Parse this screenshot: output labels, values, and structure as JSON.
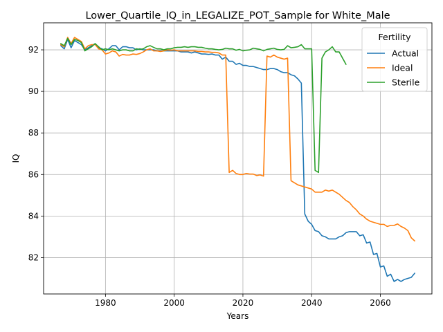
{
  "chart_data": {
    "type": "line",
    "title": "Lower_Quartile_IQ_in_LEGALIZE_POT_Sample for White_Male",
    "xlabel": "Years",
    "ylabel": "IQ",
    "xlim": [
      1962,
      2075
    ],
    "ylim": [
      80.25,
      93.3
    ],
    "xticks": [
      1980,
      2000,
      2020,
      2040,
      2060
    ],
    "yticks": [
      82,
      84,
      86,
      88,
      90,
      92
    ],
    "grid": true,
    "legend": {
      "title": "Fertility",
      "placement": "top-right"
    },
    "series": [
      {
        "name": "Actual",
        "color": "#1f77b4",
        "x": [
          1967,
          1968,
          1969,
          1970,
          1971,
          1972,
          1973,
          1974,
          1975,
          1976,
          1977,
          1978,
          1979,
          1980,
          1981,
          1982,
          1983,
          1984,
          1985,
          1986,
          1987,
          1988,
          1989,
          1990,
          1991,
          1992,
          1993,
          1994,
          1995,
          1996,
          1997,
          1998,
          1999,
          2000,
          2001,
          2002,
          2003,
          2004,
          2005,
          2006,
          2007,
          2008,
          2009,
          2010,
          2011,
          2012,
          2013,
          2014,
          2015,
          2016,
          2017,
          2018,
          2019,
          2020,
          2021,
          2022,
          2023,
          2024,
          2025,
          2026,
          2027,
          2028,
          2029,
          2030,
          2031,
          2032,
          2033,
          2034,
          2035,
          2036,
          2037,
          2038,
          2039,
          2040,
          2041,
          2042,
          2043,
          2044,
          2045,
          2046,
          2047,
          2048,
          2049,
          2050,
          2051,
          2052,
          2053,
          2054,
          2055,
          2056,
          2057,
          2058,
          2059,
          2060,
          2061,
          2062,
          2063,
          2064,
          2065,
          2066,
          2067,
          2068,
          2069,
          2070
        ],
        "values": [
          92.2,
          92.05,
          92.5,
          92.1,
          92.45,
          92.35,
          92.25,
          92.0,
          92.1,
          92.2,
          92.3,
          92.1,
          92.05,
          91.95,
          92.05,
          92.2,
          92.2,
          92.0,
          92.15,
          92.15,
          92.1,
          92.1,
          92.0,
          92.05,
          92.0,
          92.0,
          92.0,
          92.0,
          91.95,
          91.95,
          91.95,
          91.95,
          91.95,
          91.95,
          91.95,
          91.9,
          91.9,
          91.9,
          91.85,
          91.9,
          91.85,
          91.8,
          91.8,
          91.78,
          91.8,
          91.75,
          91.75,
          91.55,
          91.65,
          91.45,
          91.45,
          91.3,
          91.35,
          91.25,
          91.25,
          91.2,
          91.2,
          91.15,
          91.1,
          91.05,
          91.05,
          91.1,
          91.1,
          91.05,
          90.95,
          90.9,
          90.9,
          90.8,
          90.75,
          90.6,
          90.4,
          84.1,
          83.75,
          83.6,
          83.3,
          83.25,
          83.05,
          83.0,
          82.9,
          82.9,
          82.9,
          83.0,
          83.05,
          83.2,
          83.25,
          83.25,
          83.25,
          83.05,
          83.1,
          82.7,
          82.75,
          82.15,
          82.2,
          81.55,
          81.6,
          81.1,
          81.2,
          80.85,
          80.95,
          80.85,
          80.95,
          81.0,
          81.05,
          81.25
        ]
      },
      {
        "name": "Ideal",
        "color": "#ff7f0e",
        "x": [
          1967,
          1968,
          1969,
          1970,
          1971,
          1972,
          1973,
          1974,
          1975,
          1976,
          1977,
          1978,
          1979,
          1980,
          1981,
          1982,
          1983,
          1984,
          1985,
          1986,
          1987,
          1988,
          1989,
          1990,
          1991,
          1992,
          1993,
          1994,
          1995,
          1996,
          1997,
          1998,
          1999,
          2000,
          2001,
          2002,
          2003,
          2004,
          2005,
          2006,
          2007,
          2008,
          2009,
          2010,
          2011,
          2012,
          2013,
          2014,
          2015,
          2016,
          2017,
          2018,
          2019,
          2020,
          2021,
          2022,
          2023,
          2024,
          2025,
          2026,
          2027,
          2028,
          2029,
          2030,
          2031,
          2032,
          2033,
          2034,
          2035,
          2036,
          2037,
          2038,
          2039,
          2040,
          2041,
          2042,
          2043,
          2044,
          2045,
          2046,
          2047,
          2048,
          2049,
          2050,
          2051,
          2052,
          2053,
          2054,
          2055,
          2056,
          2057,
          2058,
          2059,
          2060,
          2061,
          2062,
          2063,
          2064,
          2065,
          2066,
          2067,
          2068,
          2069,
          2070
        ],
        "values": [
          92.25,
          92.15,
          92.6,
          92.3,
          92.6,
          92.5,
          92.4,
          92.05,
          92.2,
          92.25,
          92.25,
          92.05,
          92.0,
          91.8,
          91.85,
          91.95,
          91.9,
          91.7,
          91.78,
          91.75,
          91.75,
          91.8,
          91.78,
          91.82,
          91.9,
          92.0,
          92.05,
          91.95,
          91.95,
          91.92,
          91.95,
          92.0,
          91.98,
          92.0,
          91.95,
          91.95,
          91.95,
          91.95,
          91.95,
          91.95,
          91.92,
          91.92,
          91.9,
          91.9,
          91.88,
          91.88,
          91.85,
          91.75,
          91.75,
          86.1,
          86.2,
          86.05,
          86.0,
          86.0,
          86.05,
          86.02,
          86.02,
          85.95,
          85.98,
          85.92,
          91.7,
          91.65,
          91.75,
          91.65,
          91.6,
          91.55,
          91.6,
          85.7,
          85.6,
          85.5,
          85.45,
          85.4,
          85.35,
          85.3,
          85.15,
          85.15,
          85.15,
          85.25,
          85.2,
          85.25,
          85.15,
          85.05,
          84.9,
          84.75,
          84.65,
          84.45,
          84.3,
          84.1,
          84.0,
          83.85,
          83.75,
          83.7,
          83.65,
          83.6,
          83.6,
          83.5,
          83.55,
          83.55,
          83.62,
          83.5,
          83.42,
          83.3,
          82.95,
          82.8
        ]
      },
      {
        "name": "Sterile",
        "color": "#2ca02c",
        "x": [
          1967,
          1968,
          1969,
          1970,
          1971,
          1972,
          1973,
          1974,
          1975,
          1976,
          1977,
          1978,
          1979,
          1980,
          1981,
          1982,
          1983,
          1984,
          1985,
          1986,
          1987,
          1988,
          1989,
          1990,
          1991,
          1992,
          1993,
          1994,
          1995,
          1996,
          1997,
          1998,
          1999,
          2000,
          2001,
          2002,
          2003,
          2004,
          2005,
          2006,
          2007,
          2008,
          2009,
          2010,
          2011,
          2012,
          2013,
          2014,
          2015,
          2016,
          2017,
          2018,
          2019,
          2020,
          2021,
          2022,
          2023,
          2024,
          2025,
          2026,
          2027,
          2028,
          2029,
          2030,
          2031,
          2032,
          2033,
          2034,
          2035,
          2036,
          2037,
          2038,
          2039,
          2040,
          2041,
          2042,
          2043,
          2044,
          2045,
          2046,
          2047,
          2048,
          2049,
          2050
        ],
        "values": [
          92.3,
          92.2,
          92.55,
          92.25,
          92.5,
          92.45,
          92.35,
          91.95,
          92.05,
          92.15,
          92.3,
          92.15,
          92.0,
          92.05,
          92.0,
          92.05,
          92.0,
          91.95,
          92.0,
          92.0,
          91.95,
          91.95,
          92.05,
          92.02,
          92.05,
          92.15,
          92.2,
          92.12,
          92.05,
          92.05,
          92.0,
          92.05,
          92.05,
          92.1,
          92.12,
          92.12,
          92.15,
          92.12,
          92.15,
          92.15,
          92.12,
          92.12,
          92.08,
          92.05,
          92.05,
          92.02,
          92.0,
          92.02,
          92.08,
          92.05,
          92.05,
          91.98,
          92.02,
          91.95,
          91.98,
          92.0,
          92.08,
          92.05,
          92.02,
          91.95,
          92.02,
          92.05,
          92.08,
          92.02,
          92.0,
          92.02,
          92.2,
          92.1,
          92.12,
          92.15,
          92.25,
          92.05,
          92.05,
          92.05,
          86.2,
          86.1,
          91.6,
          91.9,
          92.0,
          92.15,
          91.9,
          91.9,
          91.6,
          91.3
        ]
      }
    ]
  }
}
